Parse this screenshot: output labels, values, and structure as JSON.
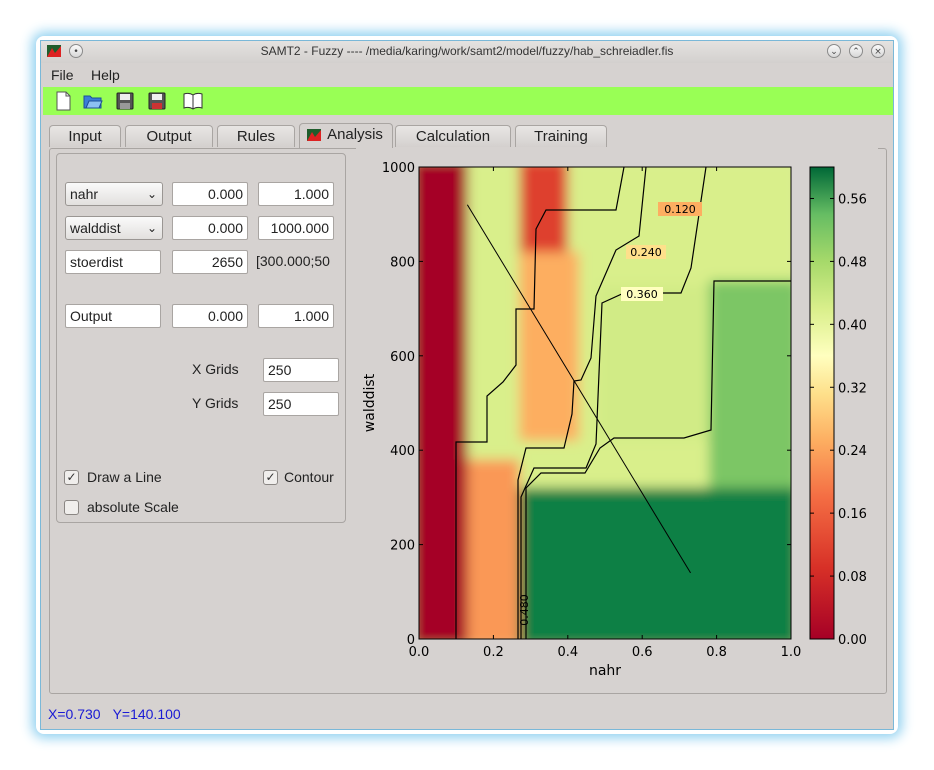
{
  "window": {
    "title": "SAMT2 - Fuzzy ---- /media/karing/work/samt2/model/fuzzy/hab_schreiadler.fis"
  },
  "menu": [
    "File",
    "Help"
  ],
  "toolbar": {
    "icons": [
      "new-file-icon",
      "open-folder-icon",
      "save-icon",
      "save-as-icon",
      "help-book-icon"
    ],
    "background": "#99ff55"
  },
  "tabs": [
    {
      "label": "Input",
      "active": false
    },
    {
      "label": "Output",
      "active": false
    },
    {
      "label": "Rules",
      "active": false
    },
    {
      "label": "Analysis",
      "active": true
    },
    {
      "label": "Calculation",
      "active": false
    },
    {
      "label": "Training",
      "active": false
    }
  ],
  "analysis": {
    "x_var": {
      "name": "nahr",
      "min": "0.000",
      "max": "1.000"
    },
    "y_var": {
      "name": "walddist",
      "min": "0.000",
      "max": "1000.000"
    },
    "fixed_var": {
      "name": "stoerdist",
      "value": "2650",
      "range": "[300.000;50"
    },
    "output": {
      "name": "Output",
      "min": "0.000",
      "max": "1.000"
    },
    "x_grids_label": "X Grids",
    "x_grids": "250",
    "y_grids_label": "Y Grids",
    "y_grids": "250",
    "draw_line": {
      "label": "Draw a Line",
      "checked": true
    },
    "contour": {
      "label": "Contour",
      "checked": true
    },
    "absolute_scale": {
      "label": "absolute Scale",
      "checked": false
    }
  },
  "status": {
    "x": "X=0.730",
    "y": "Y=140.100"
  },
  "chart_data": {
    "type": "heatmap",
    "xlabel": "nahr",
    "ylabel": "walddist",
    "xlim": [
      0.0,
      1.0
    ],
    "ylim": [
      0,
      1000
    ],
    "x_ticks": [
      "0.0",
      "0.2",
      "0.4",
      "0.6",
      "0.8",
      "1.0"
    ],
    "y_ticks": [
      "0",
      "200",
      "400",
      "600",
      "800",
      "1000"
    ],
    "colorbar_ticks": [
      "0.00",
      "0.08",
      "0.16",
      "0.24",
      "0.32",
      "0.40",
      "0.48",
      "0.56"
    ],
    "colorbar_range": [
      0.0,
      0.6
    ],
    "colormap": "RdYlGn",
    "contour_labels": [
      "0.120",
      "0.240",
      "0.360",
      "0.480"
    ],
    "drawn_line": {
      "from": [
        0.13,
        920
      ],
      "to": [
        0.73,
        140
      ]
    },
    "regions": [
      {
        "x": [
          0.0,
          0.13
        ],
        "y": [
          0,
          1000
        ],
        "value": 0.0
      },
      {
        "x": [
          0.13,
          0.27
        ],
        "y": [
          0,
          380
        ],
        "value": 0.2
      },
      {
        "x": [
          0.27,
          1.0
        ],
        "y": [
          0,
          320
        ],
        "value": 0.58
      },
      {
        "x": [
          0.78,
          1.0
        ],
        "y": [
          320,
          760
        ],
        "value": 0.48
      },
      {
        "x": [
          0.48,
          0.78
        ],
        "y": [
          420,
          750
        ],
        "value": 0.39
      },
      {
        "x": [
          0.78,
          1.0
        ],
        "y": [
          760,
          1000
        ],
        "value": 0.38
      },
      {
        "x": [
          0.27,
          0.43
        ],
        "y": [
          420,
          820
        ],
        "value": 0.22
      },
      {
        "x": [
          0.27,
          0.4
        ],
        "y": [
          820,
          1000
        ],
        "value": 0.1
      }
    ]
  }
}
